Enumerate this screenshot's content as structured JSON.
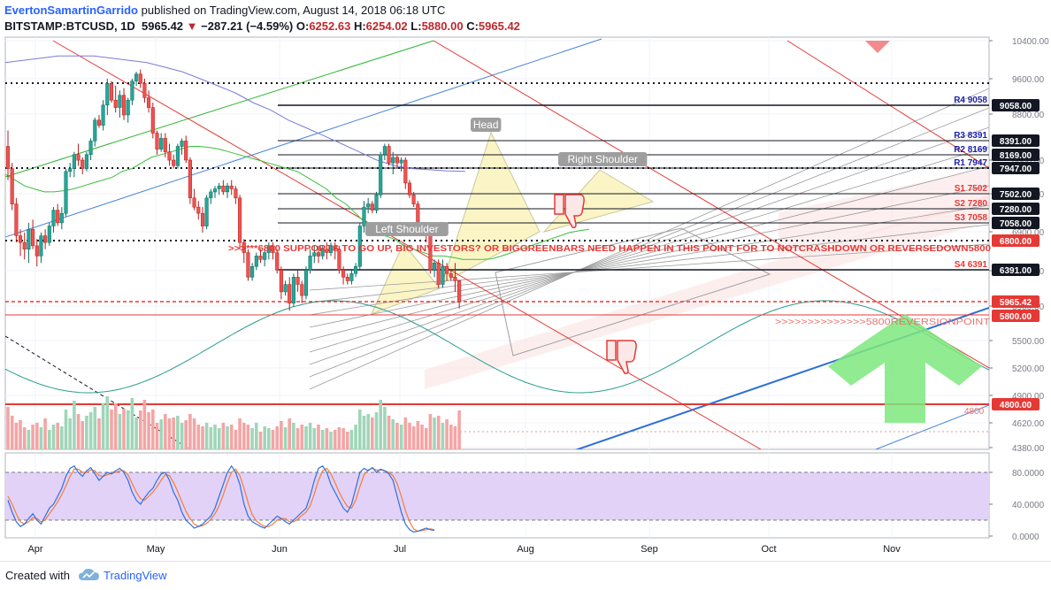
{
  "header": {
    "author": "EvertonSamartinGarrido",
    "published": "published on TradingView.com, August 14, 2018 06:18 UTC",
    "symbol": "BITSTAMP:BTCUSD, 1D",
    "last": "5965.42",
    "change": "−287.21 (−4.59%)",
    "open_label": "O:",
    "open": "6252.63",
    "high_label": "H:",
    "high": "6254.02",
    "low_label": "L:",
    "low": "5880.00",
    "close_label": "C:",
    "close": "5965.42"
  },
  "footer": {
    "created_with": "Created with",
    "brand": "TradingView"
  },
  "chart_data": {
    "type": "candlestick",
    "price_axis": {
      "ticks": [
        "10400.00",
        "9600.00",
        "8800.00",
        "8000.00",
        "7400.00",
        "6900.00",
        "6400.00",
        "5900.00",
        "5500.00",
        "5200.00",
        "4900.00",
        "4620.00",
        "4380.00"
      ],
      "scale": "log",
      "range": [
        4330,
        10600
      ]
    },
    "time_axis": {
      "ticks": [
        "Apr",
        "May",
        "Jun",
        "Jul",
        "Aug",
        "Sep",
        "Oct",
        "Nov"
      ]
    },
    "candles": [
      [
        8400,
        8700,
        7800,
        8000
      ],
      [
        8000,
        8100,
        7300,
        7400
      ],
      [
        7400,
        7500,
        6800,
        6900
      ],
      [
        6900,
        7000,
        6600,
        6800
      ],
      [
        6800,
        6950,
        6550,
        6700
      ],
      [
        6700,
        7100,
        6500,
        7000
      ],
      [
        7000,
        7150,
        6700,
        6750
      ],
      [
        6750,
        6850,
        6450,
        6600
      ],
      [
        6600,
        6950,
        6500,
        6900
      ],
      [
        6900,
        7000,
        6700,
        6800
      ],
      [
        6800,
        7100,
        6750,
        7050
      ],
      [
        7050,
        7350,
        6950,
        7300
      ],
      [
        7300,
        7400,
        7050,
        7100
      ],
      [
        7100,
        7350,
        7000,
        7250
      ],
      [
        7250,
        8000,
        7200,
        7950
      ],
      [
        7950,
        8100,
        7850,
        8000
      ],
      [
        8000,
        8300,
        7850,
        8250
      ],
      [
        8250,
        8450,
        8050,
        8150
      ],
      [
        8150,
        8200,
        7900,
        8000
      ],
      [
        8000,
        8300,
        7950,
        8250
      ],
      [
        8250,
        8550,
        8150,
        8500
      ],
      [
        8500,
        8950,
        8400,
        8900
      ],
      [
        8900,
        9000,
        8750,
        8800
      ],
      [
        8800,
        9300,
        8700,
        9200
      ],
      [
        9200,
        9750,
        9000,
        9650
      ],
      [
        9650,
        9700,
        9250,
        9300
      ],
      [
        9300,
        9600,
        9050,
        9150
      ],
      [
        9150,
        9500,
        8950,
        9400
      ],
      [
        9400,
        9550,
        8900,
        9000
      ],
      [
        9000,
        9350,
        8850,
        9300
      ],
      [
        9300,
        9750,
        9200,
        9700
      ],
      [
        9700,
        9900,
        9600,
        9850
      ],
      [
        9850,
        9950,
        9550,
        9650
      ],
      [
        9650,
        9750,
        9250,
        9350
      ],
      [
        9350,
        9500,
        9050,
        9150
      ],
      [
        9150,
        9250,
        8550,
        8650
      ],
      [
        8650,
        8700,
        8250,
        8350
      ],
      [
        8350,
        8650,
        8300,
        8550
      ],
      [
        8550,
        8650,
        8200,
        8300
      ],
      [
        8300,
        8450,
        8050,
        8150
      ],
      [
        8150,
        8250,
        8000,
        8050
      ],
      [
        8050,
        8450,
        8000,
        8400
      ],
      [
        8400,
        8550,
        8250,
        8500
      ],
      [
        8500,
        8600,
        8100,
        8150
      ],
      [
        8150,
        8200,
        7400,
        7500
      ],
      [
        7500,
        7650,
        7300,
        7350
      ],
      [
        7350,
        7450,
        7150,
        7250
      ],
      [
        7250,
        7350,
        6950,
        7050
      ],
      [
        7050,
        7550,
        7000,
        7500
      ],
      [
        7500,
        7650,
        7400,
        7600
      ],
      [
        7600,
        7700,
        7500,
        7650
      ],
      [
        7650,
        7750,
        7550,
        7700
      ],
      [
        7700,
        7800,
        7550,
        7600
      ],
      [
        7600,
        7750,
        7500,
        7700
      ],
      [
        7700,
        7800,
        7550,
        7650
      ],
      [
        7650,
        7700,
        7400,
        7500
      ],
      [
        7500,
        7550,
        6700,
        6800
      ],
      [
        6800,
        6850,
        6500,
        6650
      ],
      [
        6650,
        6700,
        6250,
        6300
      ],
      [
        6300,
        6500,
        6250,
        6450
      ],
      [
        6450,
        6650,
        6400,
        6600
      ],
      [
        6600,
        6700,
        6500,
        6550
      ],
      [
        6550,
        6700,
        6450,
        6650
      ],
      [
        6650,
        6800,
        6550,
        6750
      ],
      [
        6750,
        6800,
        6550,
        6650
      ],
      [
        6650,
        6700,
        6350,
        6400
      ],
      [
        6400,
        6450,
        6000,
        6100
      ],
      [
        6100,
        6250,
        6050,
        6200
      ],
      [
        6200,
        6300,
        5850,
        5950
      ],
      [
        5950,
        6350,
        5900,
        6300
      ],
      [
        6300,
        6400,
        6100,
        6200
      ],
      [
        6200,
        6250,
        5950,
        6050
      ],
      [
        6050,
        6450,
        6000,
        6400
      ],
      [
        6400,
        6700,
        6350,
        6600
      ],
      [
        6600,
        6750,
        6500,
        6650
      ],
      [
        6650,
        6750,
        6500,
        6600
      ],
      [
        6600,
        6750,
        6550,
        6700
      ],
      [
        6700,
        6800,
        6550,
        6650
      ],
      [
        6650,
        6800,
        6600,
        6750
      ],
      [
        6750,
        6800,
        6550,
        6700
      ],
      [
        6700,
        6750,
        6350,
        6400
      ],
      [
        6400,
        6450,
        6200,
        6300
      ],
      [
        6300,
        6350,
        6200,
        6250
      ],
      [
        6250,
        6400,
        6200,
        6350
      ],
      [
        6350,
        6500,
        6300,
        6450
      ],
      [
        6450,
        7100,
        6400,
        7050
      ],
      [
        7050,
        7450,
        6950,
        7350
      ],
      [
        7350,
        7500,
        7250,
        7400
      ],
      [
        7400,
        7450,
        7250,
        7300
      ],
      [
        7300,
        7600,
        7250,
        7550
      ],
      [
        7550,
        8300,
        7500,
        8250
      ],
      [
        8250,
        8450,
        8150,
        8400
      ],
      [
        8400,
        8450,
        8050,
        8100
      ],
      [
        8100,
        8300,
        7900,
        8200
      ],
      [
        8200,
        8250,
        8000,
        8100
      ],
      [
        8100,
        8200,
        7950,
        8150
      ],
      [
        8150,
        8200,
        7650,
        7750
      ],
      [
        7750,
        7800,
        7500,
        7550
      ],
      [
        7550,
        7600,
        7350,
        7400
      ],
      [
        7400,
        7450,
        7000,
        7050
      ],
      [
        7050,
        7100,
        6950,
        7000
      ],
      [
        7000,
        7050,
        6800,
        6900
      ],
      [
        6900,
        6950,
        6350,
        6400
      ],
      [
        6400,
        6550,
        6300,
        6500
      ],
      [
        6500,
        6550,
        6150,
        6200
      ],
      [
        6200,
        6550,
        6150,
        6450
      ],
      [
        6450,
        6500,
        6250,
        6350
      ],
      [
        6350,
        6400,
        6250,
        6300
      ],
      [
        6300,
        6500,
        6100,
        6250
      ],
      [
        6252.63,
        6254.02,
        5880,
        5965.42
      ]
    ],
    "ma_green": [
      7900,
      7800,
      7700,
      7650,
      7600,
      7600,
      7620,
      7650,
      7700,
      7750,
      7800,
      7850,
      7950,
      8000,
      8100,
      8200,
      8250,
      8300,
      8350,
      8400,
      8400,
      8380,
      8350,
      8300,
      8250,
      8200,
      8150,
      8100,
      8050,
      8000,
      7950,
      7850,
      7750,
      7650,
      7500,
      7400,
      7250,
      7100,
      7000,
      6900,
      6850,
      6750,
      6700,
      6650,
      6600,
      6600,
      6580,
      6550,
      6550,
      6550,
      6560,
      6600,
      6650,
      6700,
      6750,
      6800,
      6850,
      6900,
      6950,
      6980,
      7000
    ],
    "ma_purple": [
      10100,
      10150,
      10200,
      10250,
      10250,
      10250,
      10200,
      10150,
      10100,
      10000,
      9900,
      9750,
      9600,
      9450,
      9250,
      9100,
      8900,
      8750,
      8600,
      8450,
      8300,
      8150,
      8050,
      8000,
      7980,
      7960,
      7950
    ],
    "levels": [
      {
        "label": "R4 9058",
        "price": 9058,
        "color": "#1e22aa"
      },
      {
        "label": "R3  8391",
        "price": 8391,
        "color": "#1e22aa"
      },
      {
        "label": "R2 8169",
        "price": 8169,
        "color": "#1e22aa"
      },
      {
        "label": "R1  7947",
        "price": 7947,
        "color": "#1e22aa"
      },
      {
        "label": "S1 7502",
        "price": 7502,
        "color": "#e53935"
      },
      {
        "label": "S2 7280",
        "price": 7280,
        "color": "#e53935"
      },
      {
        "label": "S3  7058",
        "price": 7058,
        "color": "#e53935"
      },
      {
        "label": "S4   6391",
        "price": 6391,
        "color": "#e53935"
      }
    ],
    "price_labels": [
      {
        "text": "9058.00",
        "style": "black"
      },
      {
        "text": "8391.00",
        "style": "black"
      },
      {
        "text": "8169.00",
        "style": "black"
      },
      {
        "text": "7947.00",
        "style": "black"
      },
      {
        "text": "7502.00",
        "style": "black"
      },
      {
        "text": "7280.00",
        "style": "black"
      },
      {
        "text": "7058.00",
        "style": "black"
      },
      {
        "text": "6800.00",
        "style": "red"
      },
      {
        "text": "6391.00",
        "style": "black"
      },
      {
        "text": "5965.42",
        "style": "red"
      },
      {
        "text": "5800.00",
        "style": "red"
      },
      {
        "text": "4800.00",
        "style": "red"
      }
    ],
    "annotations": {
      "head": "Head",
      "left_shoulder": "Left Shoulder",
      "right_shoulder": "Right Shoulder",
      "support_note": ">>>***6800 SUPPORTS TO GO UP, BIG INVESTORS? OR BIGGREENBARS NEED HAPPEN IN THIS POINT FOR TO NOTCRASHDOWN OR REVERSEDOWN5800",
      "reversion_note": ">>>>>>>>>>>>>>5800REVERSIONPOINT",
      "level_4800": "4800"
    },
    "volume": [
      48,
      38,
      30,
      33,
      25,
      22,
      28,
      30,
      25,
      35,
      22,
      28,
      30,
      26,
      45,
      35,
      55,
      40,
      32,
      38,
      42,
      48,
      35,
      52,
      60,
      45,
      52,
      40,
      46,
      44,
      58,
      36,
      44,
      56,
      42,
      45,
      30,
      34,
      40,
      35,
      36,
      38,
      30,
      33,
      40,
      35,
      28,
      26,
      30,
      25,
      28,
      24,
      30,
      26,
      28,
      22,
      35,
      30,
      28,
      24,
      30,
      20,
      26,
      24,
      22,
      26,
      32,
      25,
      35,
      30,
      24,
      28,
      26,
      30,
      24,
      28,
      22,
      24,
      20,
      22,
      25,
      24,
      20,
      22,
      28,
      45,
      38,
      40,
      36,
      42,
      56,
      48,
      38,
      34,
      30,
      28,
      36,
      30,
      26,
      32,
      28,
      24,
      40,
      36,
      38,
      30,
      34,
      28,
      26,
      44
    ],
    "stoch_axis": {
      "ticks": [
        "80.0000",
        "40.0000",
        "0.0000"
      ],
      "range": [
        0,
        100
      ]
    },
    "stoch_k": [
      45,
      30,
      18,
      12,
      15,
      22,
      28,
      20,
      15,
      25,
      35,
      40,
      50,
      60,
      75,
      85,
      88,
      80,
      75,
      82,
      86,
      78,
      70,
      75,
      80,
      78,
      82,
      85,
      80,
      70,
      55,
      45,
      40,
      48,
      55,
      60,
      70,
      78,
      80,
      70,
      55,
      45,
      30,
      20,
      15,
      10,
      12,
      15,
      20,
      25,
      35,
      50,
      65,
      80,
      88,
      80,
      65,
      40,
      25,
      18,
      15,
      12,
      10,
      15,
      20,
      25,
      22,
      18,
      15,
      20,
      25,
      30,
      35,
      50,
      70,
      85,
      88,
      80,
      65,
      55,
      45,
      35,
      30,
      40,
      60,
      80,
      85,
      82,
      86,
      80,
      84,
      82,
      78,
      70,
      50,
      30,
      15,
      8,
      5,
      6,
      8,
      10,
      8,
      7
    ],
    "stoch_d": [
      50,
      40,
      28,
      18,
      15,
      18,
      23,
      22,
      18,
      20,
      28,
      35,
      43,
      52,
      63,
      75,
      84,
      84,
      80,
      80,
      83,
      82,
      76,
      75,
      77,
      79,
      80,
      82,
      82,
      77,
      66,
      55,
      47,
      45,
      50,
      55,
      62,
      70,
      77,
      76,
      67,
      56,
      43,
      31,
      22,
      15,
      12,
      13,
      16,
      21,
      28,
      38,
      52,
      67,
      80,
      84,
      76,
      60,
      42,
      27,
      19,
      15,
      12,
      12,
      15,
      20,
      22,
      22,
      18,
      18,
      21,
      26,
      30,
      38,
      53,
      70,
      82,
      85,
      78,
      67,
      55,
      45,
      37,
      35,
      45,
      62,
      77,
      83,
      85,
      83,
      83,
      82,
      80,
      76,
      66,
      50,
      32,
      18,
      9,
      6,
      7,
      8,
      9,
      8
    ]
  }
}
